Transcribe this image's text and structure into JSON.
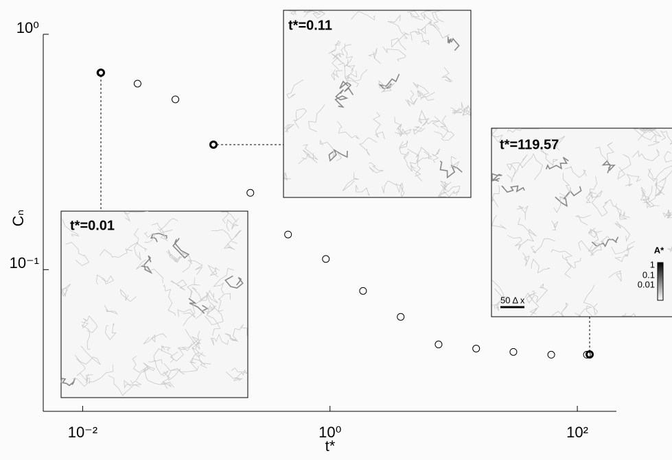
{
  "chart_data": {
    "type": "scatter",
    "x_label": "t*",
    "y_label": "Cₙ",
    "x": [
      0.0139,
      0.0278,
      0.0562,
      0.114,
      0.227,
      0.458,
      0.926,
      1.85,
      3.73,
      7.55,
      15.2,
      30.4,
      61.5,
      119.57
    ],
    "values": [
      0.687,
      0.617,
      0.529,
      0.34,
      0.212,
      0.141,
      0.111,
      0.0812,
      0.063,
      0.0481,
      0.0462,
      0.0447,
      0.0435,
      0.0435
    ],
    "color": "#000000",
    "xlog": true,
    "ylog": true,
    "xlim": [
      0.0048,
      207
    ],
    "ylim": [
      0.025,
      1
    ],
    "xticks": [
      {
        "value": 0.01,
        "label": "10⁻²"
      },
      {
        "value": 1,
        "label": "10⁰"
      },
      {
        "value": 100,
        "label": "10²"
      }
    ],
    "yticks": [
      {
        "value": 0.1,
        "label": "10⁻¹"
      },
      {
        "value": 1,
        "label": "10⁰"
      }
    ],
    "insets": [
      {
        "label": "t*=0.01"
      },
      {
        "label": "t*=0.11"
      },
      {
        "label": "t*=119.57"
      }
    ],
    "colorbar": {
      "title": "A*",
      "labels": [
        "1",
        "0.1",
        "0.01"
      ]
    },
    "scale_bar": "50 Δ x"
  }
}
